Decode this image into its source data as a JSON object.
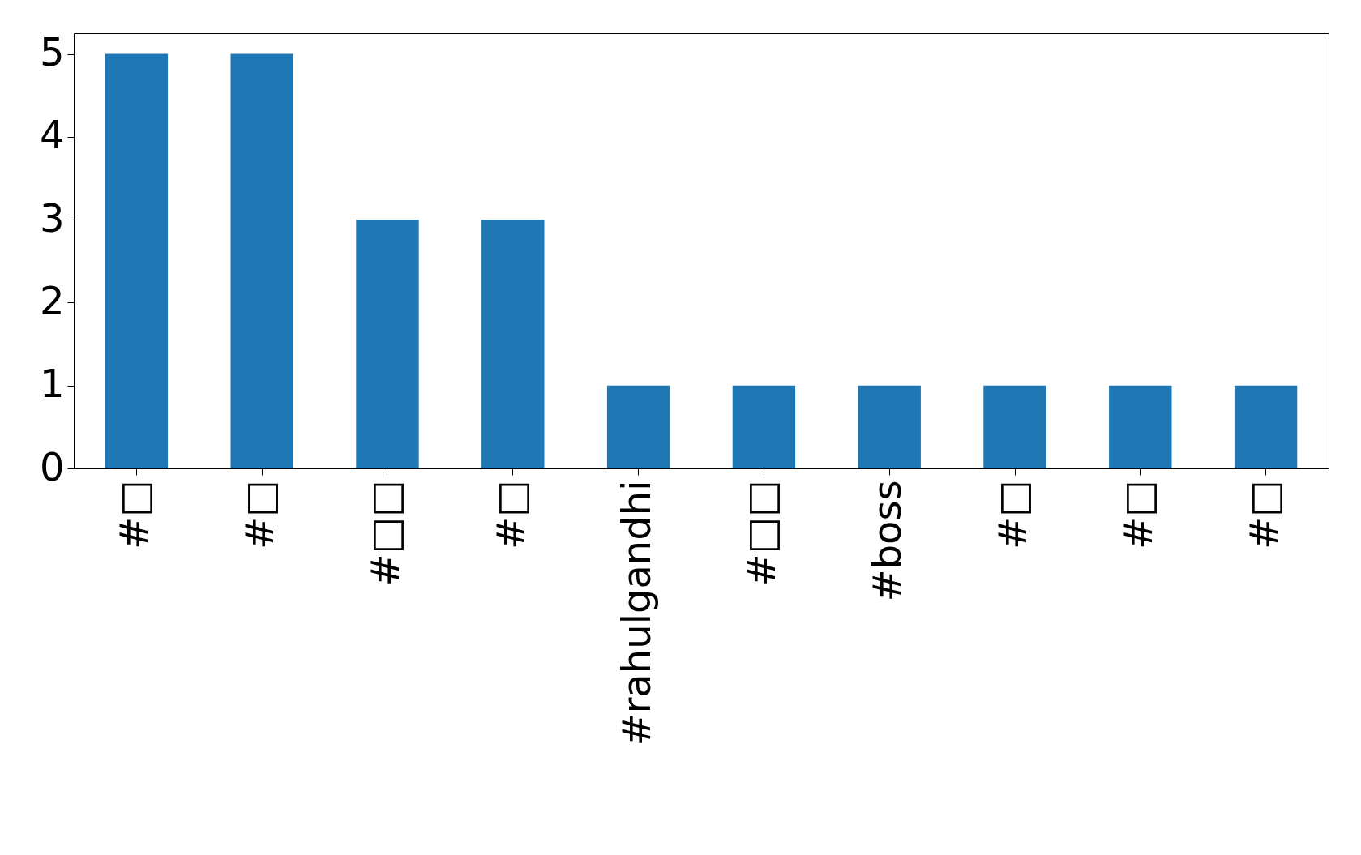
{
  "chart_data": {
    "type": "bar",
    "categories": [
      "#□",
      "#□",
      "#□□",
      "#□",
      "#rahulgandhi",
      "#□□",
      "#boss",
      "#□",
      "#□",
      "#□"
    ],
    "values": [
      5,
      5,
      3,
      3,
      1,
      1,
      1,
      1,
      1,
      1
    ],
    "color": "#1f77b4",
    "ylim": [
      0,
      5.25
    ],
    "yticks": [
      0,
      1,
      2,
      3,
      4,
      5
    ]
  }
}
